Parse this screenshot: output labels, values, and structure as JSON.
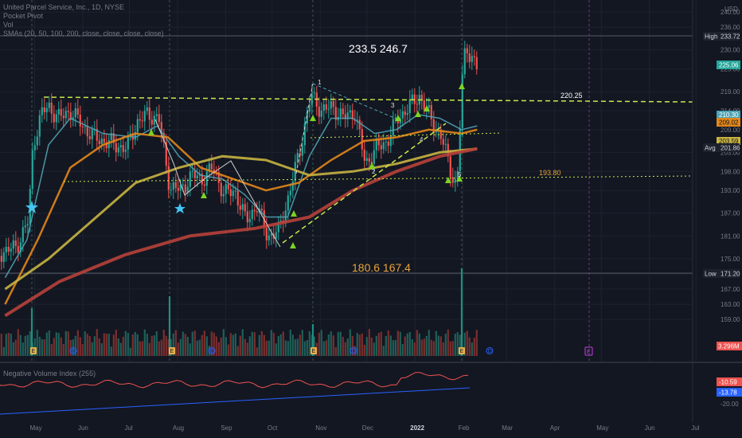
{
  "header": {
    "symbol": "United Parcel Service, Inc., 1D, NYSE",
    "indicator_1": "Pocket Pivot",
    "indicator_2": "Vol",
    "indicator_3": "SMAs (20, 50, 100, 200, close, close, close, close)"
  },
  "annotations": {
    "top_targets": "233.5  246.7",
    "bottom_targets": "180.6    167.4",
    "resistance_label": "220.25",
    "support_label": "193.80",
    "wave_labels": [
      "1",
      "2",
      "3",
      "4",
      "5"
    ]
  },
  "price_scale": {
    "currency": "USD",
    "high_tag": "High",
    "high_value": "233.72",
    "last_price": "225.06",
    "avg_tag": "Avg",
    "avg_value": "201.86",
    "low_tag": "Low",
    "low_value": "171.20",
    "sma_tag_1": "209.02",
    "sma_tag_2": "210.30",
    "sma_tag_3": "203.59",
    "volume_tag": "3.296M",
    "nvi_value_1": "-10.59",
    "nvi_value_2": "-13.78",
    "nvi_tick": "-20.00"
  },
  "nvi": {
    "title": "Negative Volume Index (255)"
  },
  "colors": {
    "background": "#131722",
    "up": "#26a69a",
    "down": "#ef5350",
    "sma20": "#4fa4b4",
    "sma50": "#e2861a",
    "sma100": "#c8b441",
    "sma200": "#b8413a",
    "trendline": "#c6e94a",
    "marker": "#7ed321",
    "star": "#42c6f5"
  },
  "chart_data": {
    "type": "candlestick",
    "title": "United Parcel Service, Inc., 1D, NYSE",
    "yaxis_ticks": [
      159.0,
      163.0,
      167.0,
      171.0,
      175.0,
      181.0,
      187.0,
      193.0,
      198.0,
      203.0,
      209.0,
      214.0,
      219.0,
      225.0,
      230.0,
      236.0,
      240.0
    ],
    "xaxis_ticks": [
      "May",
      "Jun",
      "Jul",
      "Aug",
      "Sep",
      "Oct",
      "Nov",
      "Dec",
      "2022",
      "Feb",
      "Mar",
      "Apr",
      "May",
      "Jun",
      "Jul"
    ],
    "ylim": [
      157,
      242
    ],
    "close_path": [
      [
        "2021-04-05",
        176
      ],
      [
        "2021-04-19",
        178
      ],
      [
        "2021-04-27",
        185
      ],
      [
        "2021-04-30",
        205
      ],
      [
        "2021-05-05",
        213
      ],
      [
        "2021-05-10",
        215
      ],
      [
        "2021-05-17",
        212
      ],
      [
        "2021-05-24",
        214
      ],
      [
        "2021-06-01",
        210
      ],
      [
        "2021-06-08",
        207
      ],
      [
        "2021-06-15",
        206
      ],
      [
        "2021-06-22",
        205
      ],
      [
        "2021-06-29",
        204
      ],
      [
        "2021-07-06",
        211
      ],
      [
        "2021-07-13",
        213
      ],
      [
        "2021-07-20",
        212
      ],
      [
        "2021-07-27",
        194
      ],
      [
        "2021-08-03",
        193
      ],
      [
        "2021-08-10",
        197
      ],
      [
        "2021-08-17",
        196
      ],
      [
        "2021-08-24",
        199
      ],
      [
        "2021-08-31",
        192
      ],
      [
        "2021-09-07",
        193
      ],
      [
        "2021-09-14",
        185
      ],
      [
        "2021-09-21",
        189
      ],
      [
        "2021-09-28",
        181
      ],
      [
        "2021-10-05",
        182
      ],
      [
        "2021-10-12",
        192
      ],
      [
        "2021-10-19",
        204
      ],
      [
        "2021-10-26",
        218
      ],
      [
        "2021-11-02",
        214
      ],
      [
        "2021-11-09",
        215
      ],
      [
        "2021-11-16",
        212
      ],
      [
        "2021-11-23",
        214
      ],
      [
        "2021-11-30",
        200
      ],
      [
        "2021-12-07",
        204
      ],
      [
        "2021-12-14",
        206
      ],
      [
        "2021-12-21",
        212
      ],
      [
        "2021-12-28",
        215
      ],
      [
        "2022-01-04",
        218
      ],
      [
        "2022-01-11",
        212
      ],
      [
        "2022-01-18",
        207
      ],
      [
        "2022-01-25",
        197
      ],
      [
        "2022-01-28",
        194
      ],
      [
        "2022-02-01",
        226
      ],
      [
        "2022-02-03",
        231
      ],
      [
        "2022-02-08",
        227
      ],
      [
        "2022-02-10",
        225
      ]
    ],
    "high": 233.72,
    "low": 171.2,
    "last": 225.06,
    "average": 201.86,
    "levels": [
      {
        "label": "220.25",
        "value": 220.25
      },
      {
        "label": "193.80",
        "value": 193.8
      }
    ],
    "price_targets": [
      233.5,
      246.7,
      180.6,
      167.4
    ],
    "series": [
      {
        "name": "SMA 20",
        "values": [
          [
            "2021-04-12",
            170
          ],
          [
            "2021-04-26",
            180
          ],
          [
            "2021-05-10",
            205
          ],
          [
            "2021-05-24",
            212
          ],
          [
            "2021-06-14",
            208
          ],
          [
            "2021-07-05",
            207
          ],
          [
            "2021-07-19",
            210
          ],
          [
            "2021-08-02",
            202
          ],
          [
            "2021-08-16",
            197
          ],
          [
            "2021-08-30",
            196
          ],
          [
            "2021-09-13",
            192
          ],
          [
            "2021-09-27",
            186
          ],
          [
            "2021-10-11",
            186
          ],
          [
            "2021-10-25",
            202
          ],
          [
            "2021-11-08",
            212
          ],
          [
            "2021-11-22",
            212
          ],
          [
            "2021-12-06",
            208
          ],
          [
            "2021-12-20",
            209
          ],
          [
            "2022-01-03",
            213
          ],
          [
            "2022-01-17",
            212
          ],
          [
            "2022-01-31",
            209
          ],
          [
            "2022-02-10",
            210
          ]
        ]
      },
      {
        "name": "SMA 50",
        "values": [
          [
            "2021-04-12",
            163
          ],
          [
            "2021-05-03",
            180
          ],
          [
            "2021-05-24",
            199
          ],
          [
            "2021-06-14",
            205
          ],
          [
            "2021-07-05",
            208
          ],
          [
            "2021-07-26",
            207
          ],
          [
            "2021-08-16",
            199
          ],
          [
            "2021-09-06",
            196
          ],
          [
            "2021-09-27",
            193
          ],
          [
            "2021-10-18",
            195
          ],
          [
            "2021-11-08",
            201
          ],
          [
            "2021-11-29",
            206
          ],
          [
            "2021-12-20",
            207
          ],
          [
            "2022-01-10",
            209
          ],
          [
            "2022-01-31",
            208
          ],
          [
            "2022-02-10",
            209
          ]
        ]
      },
      {
        "name": "SMA 100",
        "values": [
          [
            "2021-04-12",
            167
          ],
          [
            "2021-05-10",
            175
          ],
          [
            "2021-06-07",
            185
          ],
          [
            "2021-07-05",
            195
          ],
          [
            "2021-08-02",
            199
          ],
          [
            "2021-08-30",
            202
          ],
          [
            "2021-09-27",
            201
          ],
          [
            "2021-10-25",
            197
          ],
          [
            "2021-11-22",
            198
          ],
          [
            "2021-12-20",
            200
          ],
          [
            "2022-01-17",
            203
          ],
          [
            "2022-02-10",
            204
          ]
        ]
      },
      {
        "name": "SMA 200",
        "values": [
          [
            "2021-04-12",
            160
          ],
          [
            "2021-05-17",
            169
          ],
          [
            "2021-06-28",
            176
          ],
          [
            "2021-08-09",
            181
          ],
          [
            "2021-09-20",
            183
          ],
          [
            "2021-10-25",
            186
          ],
          [
            "2021-11-22",
            193
          ],
          [
            "2021-12-20",
            198
          ],
          [
            "2022-01-17",
            202
          ],
          [
            "2022-02-10",
            204
          ]
        ]
      }
    ],
    "volume_scale": "3.296M",
    "negative_volume_index": {
      "title": "Negative Volume Index (255)",
      "values": [
        "-10.59",
        "-13.78"
      ]
    }
  }
}
